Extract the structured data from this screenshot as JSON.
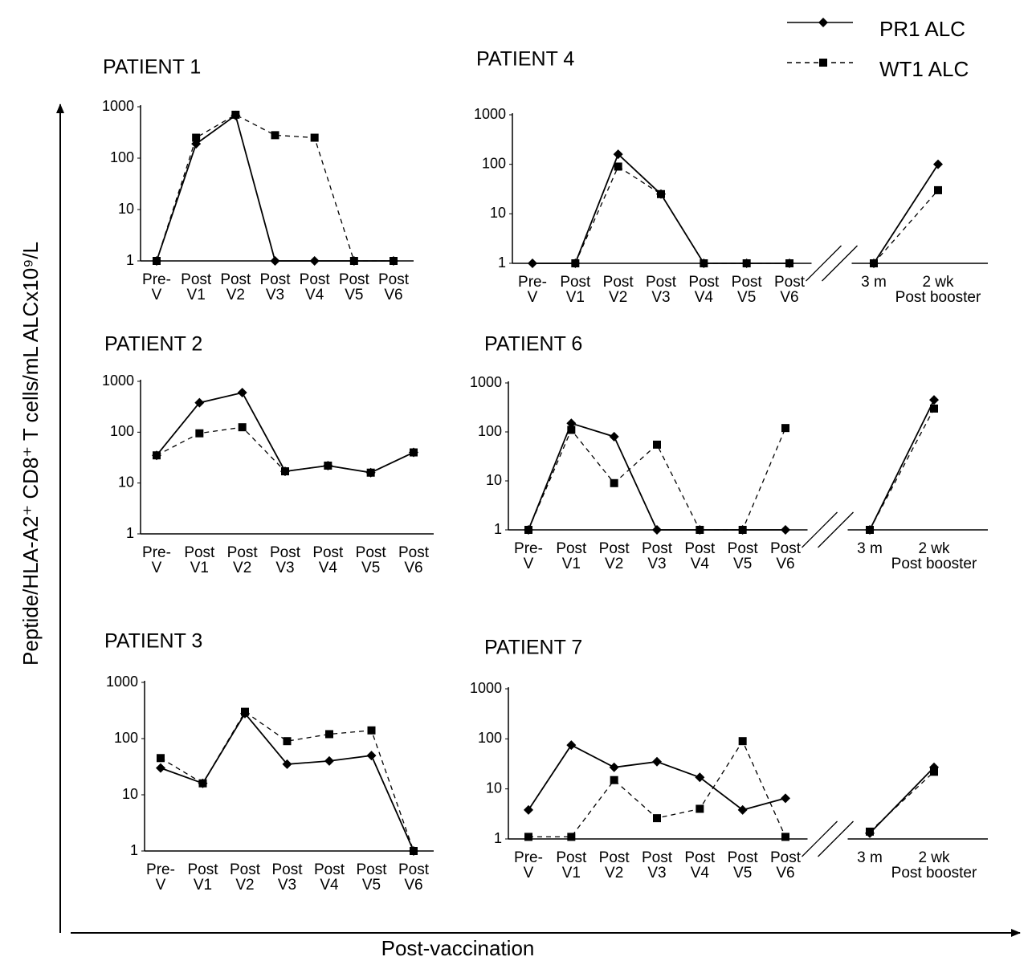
{
  "y_label": "Peptide/HLA-A2⁺ CD8⁺ T cells/mL ALCx10⁹/L",
  "x_label": "Post-vaccination",
  "legend": [
    {
      "name": "PR1 ALC",
      "color": "#000000",
      "marker": "diamond",
      "line": "solid"
    },
    {
      "name": "WT1 ALC",
      "color": "#000000",
      "marker": "square",
      "line": "dashed"
    }
  ],
  "chart_data": [
    {
      "type": "line",
      "title": "PATIENT 1",
      "log": true,
      "ylim": [
        1,
        1000
      ],
      "yticks": [
        1,
        10,
        100,
        1000
      ],
      "categories": [
        "Pre-\nV",
        "Post\nV1",
        "Post\nV2",
        "Post\nV3",
        "Post\nV4",
        "Post\nV5",
        "Post\nV6"
      ],
      "series": [
        {
          "values": [
            1,
            190,
            680,
            1,
            1,
            1,
            1
          ]
        },
        {
          "values": [
            1,
            250,
            700,
            280,
            250,
            1,
            1
          ]
        }
      ]
    },
    {
      "type": "line",
      "title": "PATIENT 4",
      "log": true,
      "ylim": [
        1,
        1000
      ],
      "yticks": [
        1,
        10,
        100,
        1000
      ],
      "axis_break_after": 6,
      "categories": [
        "Pre-\nV",
        "Post\nV1",
        "Post\nV2",
        "Post\nV3",
        "Post\nV4",
        "Post\nV5",
        "Post\nV6",
        "3 m",
        "2 wk\nPost booster"
      ],
      "series": [
        {
          "values": [
            1,
            1,
            160,
            25,
            1,
            1,
            1,
            1,
            100
          ]
        },
        {
          "values": [
            null,
            1,
            90,
            25,
            1,
            1,
            1,
            1,
            30
          ]
        }
      ]
    },
    {
      "type": "line",
      "title": "PATIENT 2",
      "log": true,
      "ylim": [
        1,
        1000
      ],
      "yticks": [
        1,
        10,
        100,
        1000
      ],
      "categories": [
        "Pre-\nV",
        "Post\nV1",
        "Post\nV2",
        "Post\nV3",
        "Post\nV4",
        "Post\nV5",
        "Post\nV6"
      ],
      "series": [
        {
          "values": [
            35,
            380,
            600,
            17,
            22,
            16,
            40
          ]
        },
        {
          "values": [
            35,
            95,
            125,
            17,
            22,
            16,
            40
          ]
        }
      ]
    },
    {
      "type": "line",
      "title": "PATIENT 6",
      "log": true,
      "ylim": [
        1,
        1000
      ],
      "yticks": [
        1,
        10,
        100,
        1000
      ],
      "axis_break_after": 6,
      "categories": [
        "Pre-\nV",
        "Post\nV1",
        "Post\nV2",
        "Post\nV3",
        "Post\nV4",
        "Post\nV5",
        "Post\nV6",
        "3 m",
        "2 wk\nPost booster"
      ],
      "series": [
        {
          "values": [
            1,
            150,
            80,
            1,
            1,
            1,
            1,
            1,
            450
          ]
        },
        {
          "values": [
            1,
            110,
            9,
            55,
            1,
            1,
            120,
            1,
            300
          ]
        }
      ]
    },
    {
      "type": "line",
      "title": "PATIENT 3",
      "log": true,
      "ylim": [
        1,
        1000
      ],
      "yticks": [
        1,
        10,
        100,
        1000
      ],
      "categories": [
        "Pre-\nV",
        "Post\nV1",
        "Post\nV2",
        "Post\nV3",
        "Post\nV4",
        "Post\nV5",
        "Post\nV6"
      ],
      "series": [
        {
          "values": [
            30,
            16,
            280,
            35,
            40,
            50,
            1
          ]
        },
        {
          "values": [
            45,
            16,
            300,
            90,
            120,
            140,
            1
          ]
        }
      ]
    },
    {
      "type": "line",
      "title": "PATIENT 7",
      "log": true,
      "ylim": [
        1,
        1000
      ],
      "yticks": [
        1,
        10,
        100,
        1000
      ],
      "axis_break_after": 6,
      "categories": [
        "Pre-\nV",
        "Post\nV1",
        "Post\nV2",
        "Post\nV3",
        "Post\nV4",
        "Post\nV5",
        "Post\nV6",
        "3 m",
        "2 wk\nPost booster"
      ],
      "series": [
        {
          "values": [
            3.8,
            75,
            27,
            35,
            17,
            3.8,
            6.5,
            1.3,
            27
          ]
        },
        {
          "values": [
            1.1,
            1.1,
            15,
            2.6,
            4,
            90,
            1.1,
            1.4,
            22
          ]
        }
      ]
    }
  ]
}
